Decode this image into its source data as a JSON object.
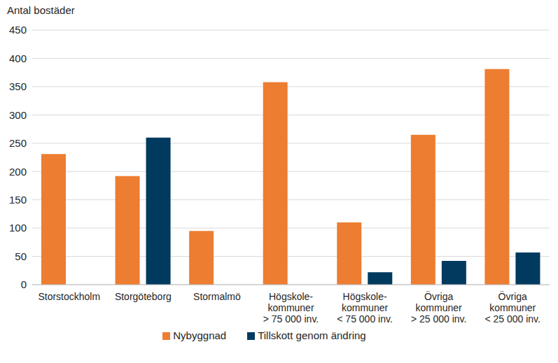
{
  "chart_data": {
    "type": "bar",
    "y_label": "Antal bostäder",
    "categories": [
      "Storstockholm",
      "Storgöteborg",
      "Stormalmö",
      "Högskole-\nkommuner\n> 75 000 inv.",
      "Högskole-\nkommuner\n< 75 000 inv.",
      "Övriga\nkommuner\n> 25 000 inv.",
      "Övriga\nkommuner\n< 25 000 inv."
    ],
    "series": [
      {
        "name": "Nybyggnad",
        "color": "#ed7d31",
        "values": [
          231,
          192,
          95,
          358,
          110,
          265,
          381
        ]
      },
      {
        "name": "Tillskott genom ändring",
        "color": "#003a5f",
        "values": [
          null,
          260,
          null,
          null,
          22,
          42,
          57
        ]
      }
    ],
    "ylim": [
      0,
      450
    ],
    "yticks": [
      0,
      50,
      100,
      150,
      200,
      250,
      300,
      350,
      400,
      450
    ],
    "grid": true,
    "legend": "bottom"
  }
}
